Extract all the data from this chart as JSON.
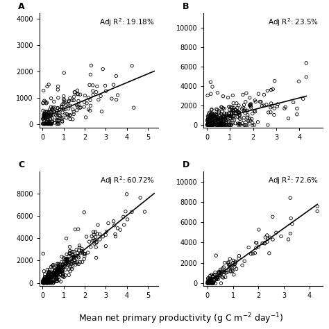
{
  "panels": [
    {
      "label": "A",
      "adj_r2": "19.18%",
      "xlim": [
        -0.15,
        5.5
      ],
      "ylim": [
        -150,
        4200
      ],
      "yticks": [
        0,
        1000,
        2000,
        3000,
        4000
      ],
      "xticks": [
        0,
        1,
        2,
        3,
        4,
        5
      ],
      "seed": 42,
      "n_points": 200,
      "x_scale": 1.0,
      "slope": 330,
      "intercept": 150,
      "noise_base": 300,
      "noise_scale": 250,
      "n_outliers": 8,
      "outlier_scale": 1800
    },
    {
      "label": "B",
      "adj_r2": "23.5%",
      "xlim": [
        -0.15,
        5.0
      ],
      "ylim": [
        -300,
        11500
      ],
      "yticks": [
        0,
        2000,
        4000,
        6000,
        8000,
        10000
      ],
      "xticks": [
        0,
        1,
        2,
        3,
        4
      ],
      "seed": 17,
      "n_points": 320,
      "x_scale": 0.9,
      "slope": 620,
      "intercept": 200,
      "noise_base": 600,
      "noise_scale": 700,
      "n_outliers": 6,
      "outlier_scale": 5000
    },
    {
      "label": "C",
      "adj_r2": "60.72%",
      "xlim": [
        -0.15,
        5.5
      ],
      "ylim": [
        -300,
        10000
      ],
      "yticks": [
        0,
        2000,
        4000,
        6000,
        8000
      ],
      "xticks": [
        0,
        1,
        2,
        3,
        4,
        5
      ],
      "seed": 55,
      "n_points": 350,
      "x_scale": 1.0,
      "slope": 1550,
      "intercept": -100,
      "noise_base": 400,
      "noise_scale": 500,
      "n_outliers": 5,
      "outlier_scale": 3000
    },
    {
      "label": "D",
      "adj_r2": "72.6%",
      "xlim": [
        -0.15,
        4.5
      ],
      "ylim": [
        -300,
        11000
      ],
      "yticks": [
        0,
        2000,
        4000,
        6000,
        8000,
        10000
      ],
      "xticks": [
        0,
        1,
        2,
        3,
        4
      ],
      "seed": 88,
      "n_points": 140,
      "x_scale": 0.85,
      "slope": 1800,
      "intercept": -50,
      "noise_base": 300,
      "noise_scale": 400,
      "n_outliers": 4,
      "outlier_scale": 3000
    }
  ],
  "xlabel": "Mean net primary productivity (g C m$^{-2}$ day$^{-1}$)",
  "figure_bg": "white",
  "scatter_color": "none",
  "scatter_edgecolor": "black",
  "scatter_size": 10,
  "scatter_linewidth": 0.6,
  "line_color": "black",
  "line_width": 1.2,
  "label_fontsize": 9,
  "tick_fontsize": 7,
  "annot_fontsize": 7.5
}
